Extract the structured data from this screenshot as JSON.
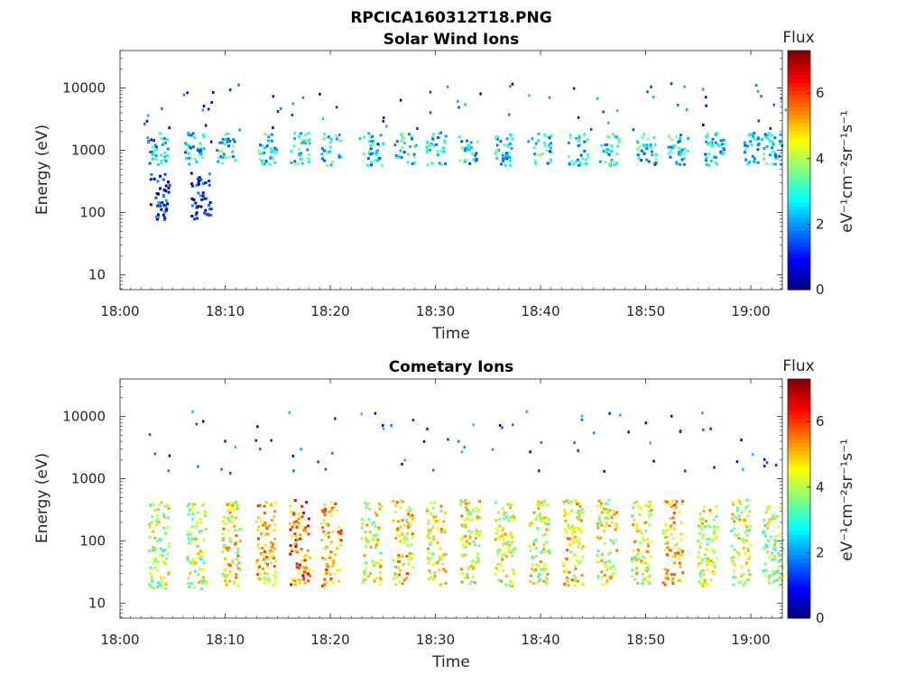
{
  "figure": {
    "title": "RPCICA160312T18.PNG"
  },
  "chart_data": [
    {
      "type": "heatmap",
      "title": "Solar Wind Ions",
      "xlabel": "Time",
      "ylabel": "Energy (eV)",
      "x_ticks": [
        "18:00",
        "18:10",
        "18:20",
        "18:30",
        "18:40",
        "18:50",
        "19:00"
      ],
      "xlim_minutes": [
        0,
        63
      ],
      "y_ticks": [
        "10",
        "100",
        "1000",
        "10000"
      ],
      "ylim": [
        5.8,
        40000
      ],
      "y_scale": "log",
      "colorbar": {
        "title": "Flux",
        "label": "eV⁻¹cm⁻²sr⁻¹s⁻¹",
        "ticks": [
          "0",
          "2",
          "4",
          "6"
        ],
        "range": [
          0,
          7.3
        ],
        "colormap": "jet"
      },
      "bursts": [
        {
          "t": 3.5,
          "band": "high_energy",
          "e_min": 600,
          "e_max": 2000,
          "flux": 2.6
        },
        {
          "t": 3.7,
          "band": "mid_energy",
          "e_min": 80,
          "e_max": 450,
          "flux": 1.0
        },
        {
          "t": 7.0,
          "band": "high_energy",
          "e_min": 600,
          "e_max": 2000,
          "flux": 2.6
        },
        {
          "t": 7.6,
          "band": "mid_energy",
          "e_min": 80,
          "e_max": 450,
          "flux": 1.0
        },
        {
          "t": 10.0,
          "band": "high_energy",
          "e_min": 600,
          "e_max": 2000,
          "flux": 2.7
        },
        {
          "t": 14.0,
          "band": "high_energy",
          "e_min": 600,
          "e_max": 2000,
          "flux": 2.7
        },
        {
          "t": 17.0,
          "band": "high_energy",
          "e_min": 600,
          "e_max": 2200,
          "flux": 2.9
        },
        {
          "t": 20.0,
          "band": "high_energy",
          "e_min": 600,
          "e_max": 2000,
          "flux": 2.6
        },
        {
          "t": 24.0,
          "band": "high_energy",
          "e_min": 600,
          "e_max": 2000,
          "flux": 2.6
        },
        {
          "t": 27.0,
          "band": "high_energy",
          "e_min": 600,
          "e_max": 2000,
          "flux": 2.6
        },
        {
          "t": 30.0,
          "band": "high_energy",
          "e_min": 600,
          "e_max": 2000,
          "flux": 2.6
        },
        {
          "t": 33.0,
          "band": "high_energy",
          "e_min": 600,
          "e_max": 2000,
          "flux": 2.6
        },
        {
          "t": 36.5,
          "band": "high_energy",
          "e_min": 600,
          "e_max": 2000,
          "flux": 2.6
        },
        {
          "t": 40.0,
          "band": "high_energy",
          "e_min": 600,
          "e_max": 2000,
          "flux": 2.6
        },
        {
          "t": 43.5,
          "band": "high_energy",
          "e_min": 600,
          "e_max": 2000,
          "flux": 2.6
        },
        {
          "t": 46.5,
          "band": "high_energy",
          "e_min": 600,
          "e_max": 2000,
          "flux": 2.6
        },
        {
          "t": 50.0,
          "band": "high_energy",
          "e_min": 600,
          "e_max": 2000,
          "flux": 2.6
        },
        {
          "t": 53.0,
          "band": "high_energy",
          "e_min": 600,
          "e_max": 2000,
          "flux": 2.6
        },
        {
          "t": 56.5,
          "band": "high_energy",
          "e_min": 600,
          "e_max": 2000,
          "flux": 2.6
        },
        {
          "t": 60.0,
          "band": "high_energy",
          "e_min": 600,
          "e_max": 2000,
          "flux": 2.6
        },
        {
          "t": 62.0,
          "band": "high_energy",
          "e_min": 600,
          "e_max": 2000,
          "flux": 2.6
        }
      ]
    },
    {
      "type": "heatmap",
      "title": "Cometary Ions",
      "xlabel": "Time",
      "ylabel": "Energy (eV)",
      "x_ticks": [
        "18:00",
        "18:10",
        "18:20",
        "18:30",
        "18:40",
        "18:50",
        "19:00"
      ],
      "xlim_minutes": [
        0,
        63
      ],
      "y_ticks": [
        "10",
        "100",
        "1000",
        "10000"
      ],
      "ylim": [
        5.8,
        40000
      ],
      "y_scale": "log",
      "colorbar": {
        "title": "Flux",
        "label": "eV⁻¹cm⁻²sr⁻¹s⁻¹",
        "ticks": [
          "0",
          "2",
          "4",
          "6"
        ],
        "range": [
          0,
          7.3
        ],
        "colormap": "jet"
      },
      "bursts": [
        {
          "t": 3.6,
          "e_min": 18,
          "e_max": 480,
          "flux": 4.0
        },
        {
          "t": 7.2,
          "e_min": 18,
          "e_max": 420,
          "flux": 4.1
        },
        {
          "t": 10.5,
          "e_min": 20,
          "e_max": 450,
          "flux": 4.6
        },
        {
          "t": 13.8,
          "e_min": 20,
          "e_max": 480,
          "flux": 4.9
        },
        {
          "t": 17.0,
          "e_min": 20,
          "e_max": 480,
          "flux": 5.6
        },
        {
          "t": 20.0,
          "e_min": 20,
          "e_max": 450,
          "flux": 5.0
        },
        {
          "t": 23.8,
          "e_min": 20,
          "e_max": 450,
          "flux": 4.3
        },
        {
          "t": 26.8,
          "e_min": 20,
          "e_max": 480,
          "flux": 4.8
        },
        {
          "t": 30.0,
          "e_min": 20,
          "e_max": 480,
          "flux": 4.5
        },
        {
          "t": 33.2,
          "e_min": 20,
          "e_max": 500,
          "flux": 4.4
        },
        {
          "t": 36.5,
          "e_min": 20,
          "e_max": 480,
          "flux": 4.3
        },
        {
          "t": 39.8,
          "e_min": 20,
          "e_max": 480,
          "flux": 4.3
        },
        {
          "t": 43.0,
          "e_min": 20,
          "e_max": 480,
          "flux": 4.6
        },
        {
          "t": 46.2,
          "e_min": 20,
          "e_max": 480,
          "flux": 4.4
        },
        {
          "t": 49.5,
          "e_min": 20,
          "e_max": 480,
          "flux": 4.4
        },
        {
          "t": 52.5,
          "e_min": 20,
          "e_max": 480,
          "flux": 4.8
        },
        {
          "t": 55.8,
          "e_min": 20,
          "e_max": 480,
          "flux": 4.3
        },
        {
          "t": 59.0,
          "e_min": 20,
          "e_max": 480,
          "flux": 4.2
        },
        {
          "t": 62.0,
          "e_min": 20,
          "e_max": 400,
          "flux": 3.8
        }
      ]
    }
  ]
}
